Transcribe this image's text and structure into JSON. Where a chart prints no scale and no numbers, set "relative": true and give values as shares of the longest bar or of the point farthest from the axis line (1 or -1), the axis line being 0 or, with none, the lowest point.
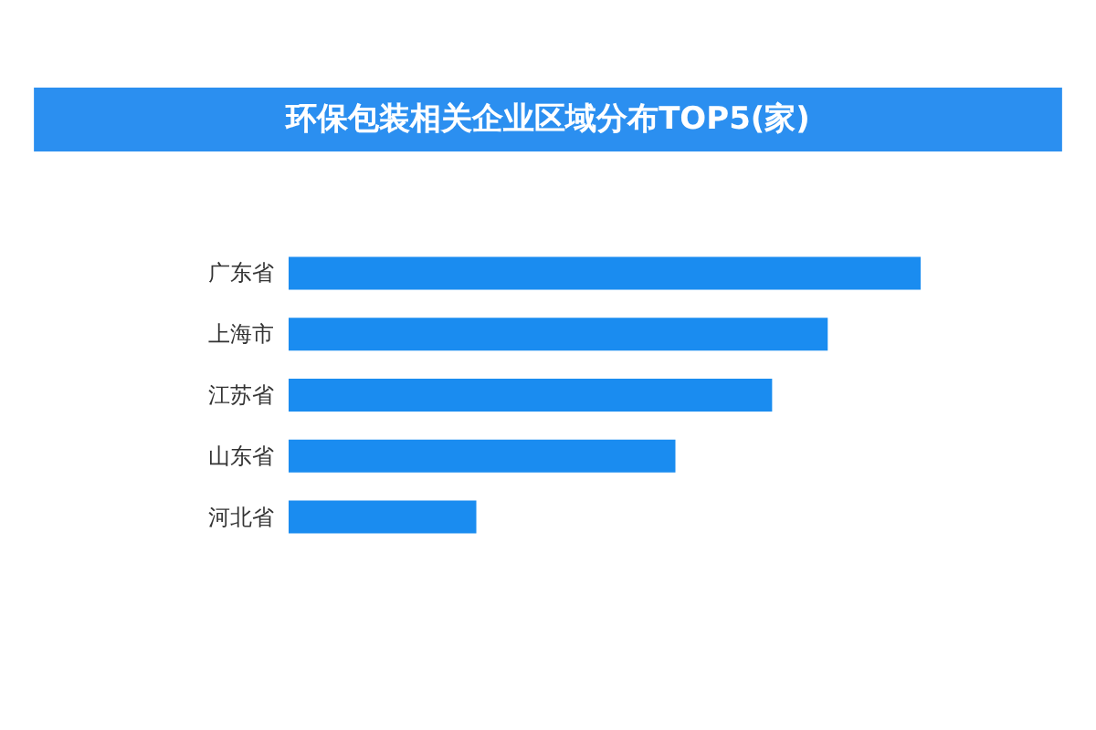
{
  "chart_data": {
    "type": "bar",
    "orientation": "horizontal",
    "relative": true,
    "title": "环保包装相关企业区域分布TOP5(家)",
    "categories": [
      "广东省",
      "上海市",
      "江苏省",
      "山东省",
      "河北省"
    ],
    "values": [
      1,
      0.853,
      0.765,
      0.612,
      0.297
    ],
    "color": "#1a8cf0"
  }
}
